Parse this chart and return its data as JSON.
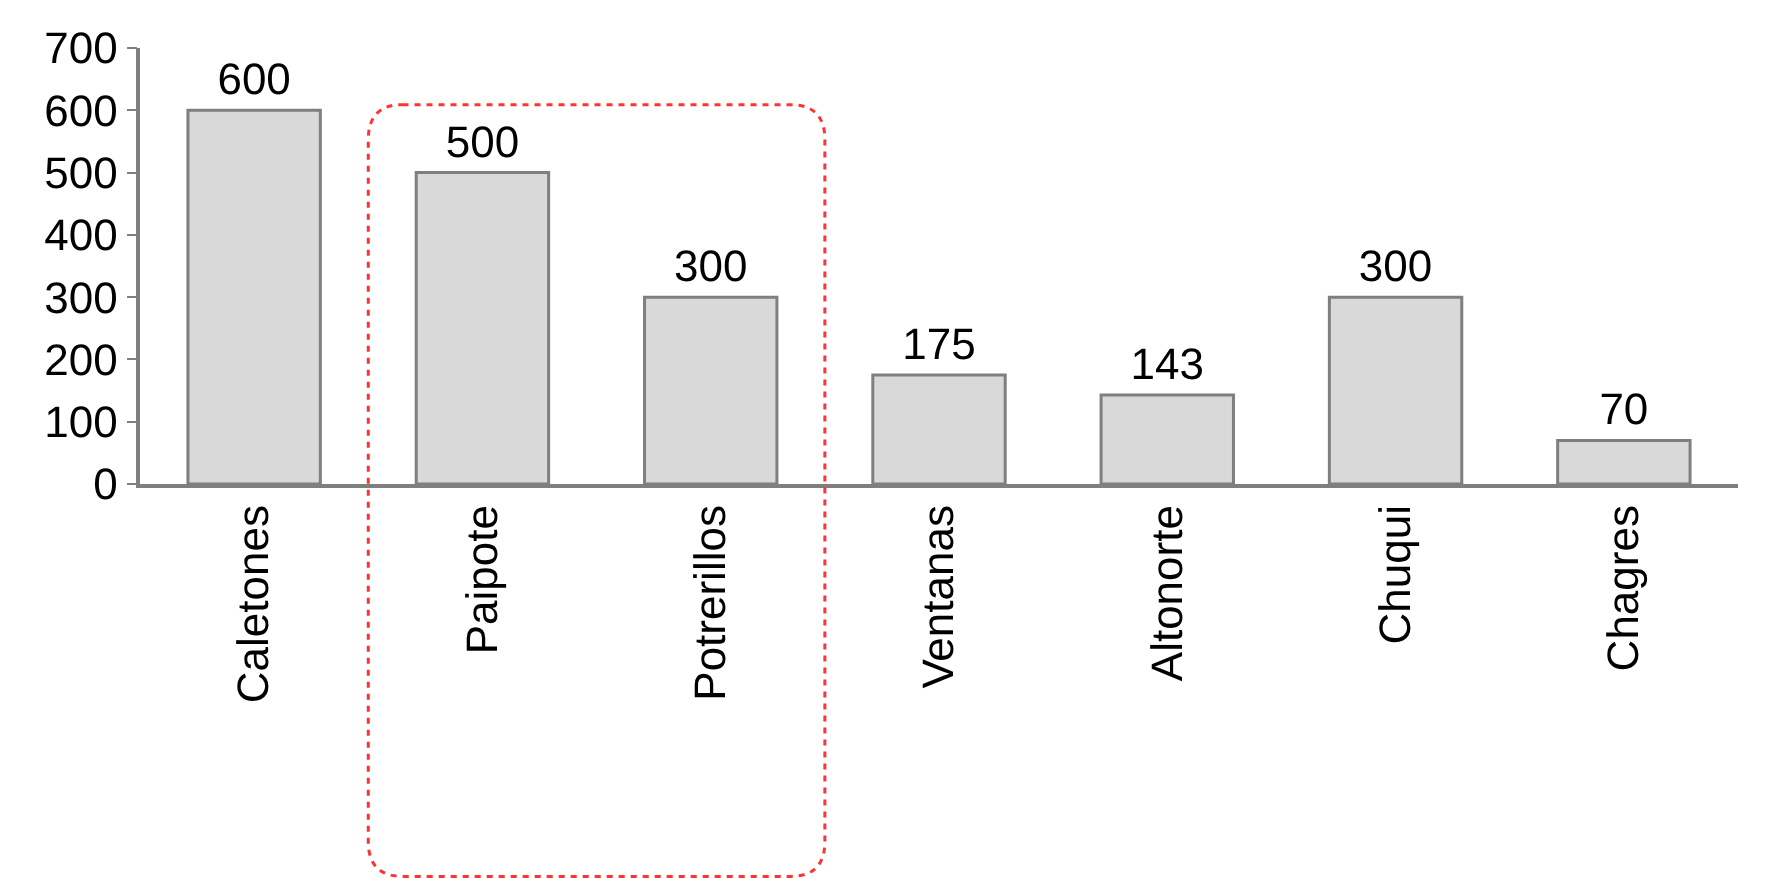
{
  "chart_data": {
    "type": "bar",
    "categories": [
      "Caletones",
      "Paipote",
      "Potrerillos",
      "Ventanas",
      "Altonorte",
      "Chuqui",
      "Chagres"
    ],
    "values": [
      600,
      500,
      300,
      175,
      143,
      300,
      70
    ],
    "color": "#d9d9d9",
    "ylim": [
      0,
      700
    ],
    "yticks": [
      0,
      100,
      200,
      300,
      400,
      500,
      600,
      700
    ],
    "data_labels": true
  }
}
